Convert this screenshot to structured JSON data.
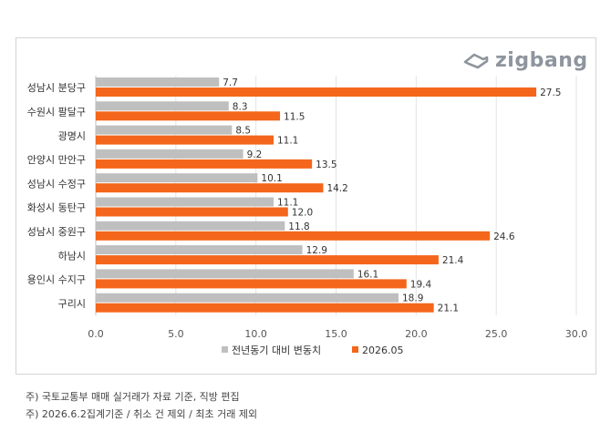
{
  "logo": {
    "text": "zigbang",
    "icon": "zigbang-house-icon"
  },
  "chart_data": {
    "type": "bar",
    "orientation": "horizontal",
    "categories": [
      "성남시 분당구",
      "수원시 팔달구",
      "광명시",
      "안양시 만안구",
      "성남시 수정구",
      "화성시 동탄구",
      "성남시 중원구",
      "하남시",
      "용인시 수지구",
      "구리시"
    ],
    "series": [
      {
        "name": "전년동기 대비 변동치",
        "color": "#bfbfbf",
        "values": [
          7.7,
          8.3,
          8.5,
          9.2,
          10.1,
          11.1,
          11.8,
          12.9,
          16.1,
          18.9
        ]
      },
      {
        "name": "2026.05",
        "color": "#f4661b",
        "values": [
          27.5,
          11.5,
          11.1,
          13.5,
          14.2,
          12.0,
          24.6,
          21.4,
          19.4,
          21.1
        ]
      }
    ],
    "xlim": [
      0,
      30
    ],
    "xticks": [
      "0.0",
      "5.0",
      "10.0",
      "15.0",
      "20.0",
      "25.0",
      "30.0"
    ],
    "grid": true,
    "legend": "bottom",
    "data_labels": true
  },
  "footnotes": [
    "주) 국토교통부 매매 실거래가 자료 기준, 직방 편집",
    "주) 2026.6.2집계기준 / 취소 건 제외  / 최초 거래 제외"
  ]
}
